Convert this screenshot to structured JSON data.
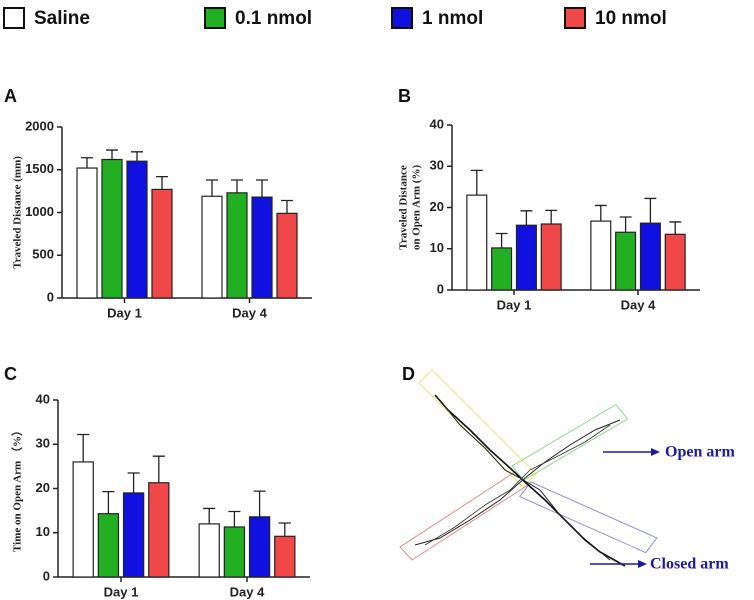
{
  "chart_data": [
    {
      "type": "bar",
      "panel": "A",
      "y_label": "Traveled Distance (mm)",
      "categories": [
        "Day 1",
        "Day 4"
      ],
      "ylim": [
        0,
        2000
      ],
      "yticks": [
        0,
        500,
        1000,
        1500,
        2000
      ],
      "series": [
        {
          "name": "Saline",
          "color": "#ffffff",
          "values": [
            1520,
            1190
          ],
          "errors": [
            120,
            190
          ]
        },
        {
          "name": "0.1 nmol",
          "color": "#22b022",
          "values": [
            1620,
            1230
          ],
          "errors": [
            110,
            150
          ]
        },
        {
          "name": "1 nmol",
          "color": "#1010e0",
          "values": [
            1600,
            1180
          ],
          "errors": [
            110,
            200
          ]
        },
        {
          "name": "10 nmol",
          "color": "#f04848",
          "values": [
            1270,
            990
          ],
          "errors": [
            150,
            150
          ]
        }
      ]
    },
    {
      "type": "bar",
      "panel": "B",
      "y_label": [
        "Traveled Distance",
        "on Open Arm (%)"
      ],
      "categories": [
        "Day 1",
        "Day 4"
      ],
      "ylim": [
        0,
        40
      ],
      "yticks": [
        0,
        10,
        20,
        30,
        40
      ],
      "series": [
        {
          "color": "#ffffff",
          "values": [
            23,
            16.7
          ],
          "errors": [
            6,
            3.8
          ]
        },
        {
          "color": "#22b022",
          "values": [
            10.2,
            14
          ],
          "errors": [
            3.5,
            3.7
          ]
        },
        {
          "color": "#1010e0",
          "values": [
            15.7,
            16.2
          ],
          "errors": [
            3.5,
            6
          ]
        },
        {
          "color": "#f04848",
          "values": [
            16,
            13.5
          ],
          "errors": [
            3.3,
            3
          ]
        }
      ]
    },
    {
      "type": "bar",
      "panel": "C",
      "y_label": "Time on Open Arm （%）",
      "categories": [
        "Day 1",
        "Day 4"
      ],
      "ylim": [
        0,
        40
      ],
      "yticks": [
        0,
        10,
        20,
        30,
        40
      ],
      "series": [
        {
          "color": "#ffffff",
          "values": [
            26,
            12
          ],
          "errors": [
            6.2,
            3.5
          ]
        },
        {
          "color": "#22b022",
          "values": [
            14.3,
            11.3
          ],
          "errors": [
            5,
            3.5
          ]
        },
        {
          "color": "#1010e0",
          "values": [
            19,
            13.6
          ],
          "errors": [
            4.5,
            5.8
          ]
        },
        {
          "color": "#f04848",
          "values": [
            21.3,
            9.2
          ],
          "errors": [
            6,
            3
          ]
        }
      ]
    }
  ],
  "diagram": {
    "panel": "D",
    "annotations": [
      "Open arm",
      "Closed arm"
    ]
  }
}
